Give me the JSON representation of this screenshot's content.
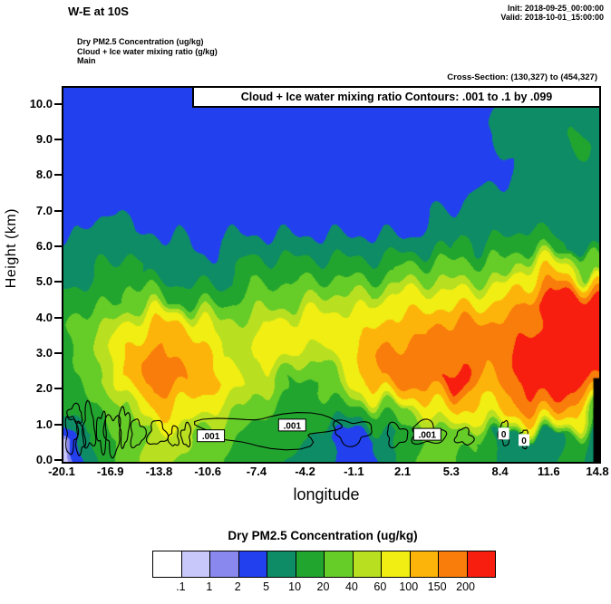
{
  "header": {
    "title": "W-E at 10S",
    "init_label": "Init: 2018-09-25_00:00:00",
    "valid_label": "Valid: 2018-10-01_15:00:00",
    "field_lines": [
      "Dry PM2.5 Concentration   (ug/kg)",
      "Cloud + Ice water mixing ratio   (g/kg)",
      "Main"
    ],
    "cross_section": "Cross-Section: (130,327) to (454,327)"
  },
  "plot": {
    "contour_note": "Cloud + Ice water mixing ratio Contours: .001 to .1 by .099",
    "ylabel": "Height (km)",
    "xlabel": "longitude",
    "y_ticks": [
      "0.0",
      "1.0",
      "2.0",
      "3.0",
      "4.0",
      "5.0",
      "6.0",
      "7.0",
      "8.0",
      "9.0",
      "10.0"
    ],
    "x_ticks": [
      "-20.1",
      "-16.9",
      "-13.8",
      "-10.6",
      "-7.4",
      "-4.2",
      "-1.1",
      "2.1",
      "5.3",
      "8.4",
      "11.6",
      "14.8"
    ]
  },
  "chart_data": {
    "type": "heatmap",
    "title": "Dry PM2.5 Concentration cross-section W-E at 10S",
    "xlabel": "longitude",
    "ylabel": "Height (km)",
    "x_range": [
      -20.1,
      14.8
    ],
    "y_range": [
      0,
      10.5
    ],
    "levels": [
      0.1,
      1,
      2,
      5,
      10,
      20,
      40,
      60,
      100,
      150,
      200
    ],
    "palette": [
      "#ffffff",
      "#c8c8fa",
      "#8888ee",
      "#2240ee",
      "#0e8c66",
      "#22a52e",
      "#66cc28",
      "#b8e020",
      "#f0ee12",
      "#fdb40a",
      "#f97d0a",
      "#f71e10"
    ],
    "grid": {
      "cols": 24,
      "rows": 15,
      "order": "rows top (h=10.5 km) to bottom (h=0 km), columns west (-20.1) to east (14.8)",
      "values": [
        [
          3,
          3,
          3,
          3,
          3,
          3,
          3,
          3,
          3,
          3,
          3,
          3,
          3,
          3,
          3,
          3,
          3,
          3,
          3,
          7,
          7,
          3,
          7,
          7
        ],
        [
          3,
          3,
          3,
          3,
          3,
          3,
          3,
          3,
          3,
          3,
          3,
          3,
          3,
          3,
          3,
          3,
          3,
          3,
          3,
          7,
          7,
          7,
          7,
          7
        ],
        [
          3,
          3,
          3,
          3,
          3,
          3,
          3,
          3,
          3,
          3,
          3,
          3,
          3,
          3,
          3,
          3,
          3,
          3,
          3,
          7,
          7,
          7,
          15,
          7
        ],
        [
          3,
          3,
          3,
          3,
          3,
          3,
          3,
          3,
          3,
          3,
          3,
          3,
          3,
          3,
          3,
          3,
          3,
          3,
          3,
          3,
          7,
          7,
          7,
          7
        ],
        [
          3,
          3,
          3,
          3,
          3,
          3,
          3,
          3,
          3,
          3,
          3,
          3,
          3,
          3,
          3,
          3,
          3,
          3,
          7,
          7,
          7,
          7,
          7,
          7
        ],
        [
          3,
          3,
          7,
          3,
          3,
          3,
          3,
          3,
          3,
          3,
          3,
          3,
          3,
          3,
          3,
          3,
          7,
          7,
          7,
          7,
          7,
          7,
          7,
          7
        ],
        [
          7,
          7,
          7,
          7,
          7,
          7,
          3,
          7,
          7,
          7,
          7,
          7,
          7,
          7,
          7,
          7,
          7,
          15,
          7,
          15,
          15,
          15,
          7,
          7
        ],
        [
          7,
          7,
          15,
          15,
          7,
          7,
          7,
          7,
          15,
          15,
          15,
          15,
          15,
          15,
          15,
          30,
          30,
          30,
          30,
          30,
          80,
          120,
          80,
          15
        ],
        [
          15,
          15,
          15,
          30,
          30,
          15,
          15,
          15,
          30,
          30,
          30,
          50,
          50,
          50,
          80,
          80,
          80,
          80,
          80,
          120,
          170,
          250,
          250,
          250
        ],
        [
          15,
          30,
          50,
          80,
          120,
          120,
          80,
          50,
          50,
          80,
          80,
          80,
          80,
          80,
          120,
          120,
          170,
          170,
          170,
          170,
          170,
          250,
          250,
          250
        ],
        [
          15,
          30,
          50,
          120,
          170,
          120,
          120,
          50,
          50,
          80,
          50,
          50,
          80,
          120,
          170,
          170,
          170,
          170,
          170,
          170,
          250,
          250,
          250,
          250
        ],
        [
          15,
          30,
          50,
          120,
          170,
          170,
          120,
          80,
          50,
          50,
          15,
          15,
          50,
          120,
          170,
          170,
          170,
          250,
          120,
          170,
          250,
          250,
          250,
          170
        ],
        [
          7,
          15,
          30,
          50,
          120,
          80,
          80,
          50,
          30,
          15,
          15,
          15,
          15,
          15,
          30,
          50,
          80,
          120,
          80,
          120,
          170,
          170,
          120,
          30
        ],
        [
          0.5,
          7,
          15,
          30,
          50,
          50,
          30,
          30,
          15,
          15,
          15,
          7,
          3,
          3,
          7,
          15,
          30,
          30,
          15,
          7,
          7,
          7,
          15,
          3
        ],
        [
          0.5,
          7,
          15,
          30,
          50,
          30,
          30,
          15,
          15,
          15,
          7,
          7,
          3,
          3,
          7,
          15,
          30,
          15,
          15,
          7,
          7,
          7,
          15,
          3
        ]
      ]
    },
    "terrain_column": {
      "lon_from": 14.42,
      "lon_to": 14.8,
      "h_from": 0,
      "h_to": 2.35,
      "color": "#000000"
    },
    "contours": {
      "field": "Cloud + Ice water mixing ratio",
      "levels_note": ".001 to .1 by .099",
      "blobs": [
        {
          "cx": -19.6,
          "cy": 0.8,
          "rx": 0.38,
          "ry": 0.5,
          "seed": 1
        },
        {
          "cx": -19.0,
          "cy": 0.65,
          "rx": 0.3,
          "ry": 0.4,
          "seed": 2
        },
        {
          "cx": -18.45,
          "cy": 0.95,
          "rx": 0.42,
          "ry": 0.55,
          "seed": 3
        },
        {
          "cx": -19.35,
          "cy": 1.35,
          "rx": 0.5,
          "ry": 0.22,
          "seed": 4
        },
        {
          "cx": -17.6,
          "cy": 0.85,
          "rx": 0.32,
          "ry": 0.5,
          "seed": 5
        },
        {
          "cx": -16.9,
          "cy": 0.8,
          "rx": 0.5,
          "ry": 0.55,
          "seed": 6
        },
        {
          "cx": -16.15,
          "cy": 1.0,
          "rx": 0.3,
          "ry": 0.55,
          "seed": 7
        },
        {
          "cx": -15.3,
          "cy": 0.8,
          "rx": 0.42,
          "ry": 0.4,
          "seed": 8
        },
        {
          "cx": -14.0,
          "cy": 0.8,
          "rx": 0.55,
          "ry": 0.35,
          "seed": 9
        },
        {
          "cx": -12.9,
          "cy": 0.7,
          "rx": 0.3,
          "ry": 0.28,
          "seed": 10
        },
        {
          "cx": -12.1,
          "cy": 0.75,
          "rx": 0.3,
          "ry": 0.3,
          "seed": 11
        },
        {
          "cx": -6.6,
          "cy": 0.9,
          "rx": 4.6,
          "ry": 0.42,
          "seed": 12
        },
        {
          "cx": -1.3,
          "cy": 0.85,
          "rx": 1.3,
          "ry": 0.3,
          "seed": 13
        },
        {
          "cx": 1.6,
          "cy": 0.75,
          "rx": 0.7,
          "ry": 0.28,
          "seed": 14
        },
        {
          "cx": 3.6,
          "cy": 0.8,
          "rx": 1.1,
          "ry": 0.3,
          "seed": 15
        },
        {
          "cx": 6.0,
          "cy": 0.7,
          "rx": 0.55,
          "ry": 0.22,
          "seed": 16
        },
        {
          "cx": 8.6,
          "cy": 0.8,
          "rx": 0.3,
          "ry": 0.35,
          "seed": 17
        },
        {
          "cx": 9.9,
          "cy": 0.65,
          "rx": 0.22,
          "ry": 0.28,
          "seed": 18
        }
      ],
      "labels": [
        {
          "text": ".001",
          "lon": -10.5,
          "h": 0.72,
          "boxed": true
        },
        {
          "text": ".001",
          "lon": -5.2,
          "h": 1.02,
          "boxed": true
        },
        {
          "text": ".001",
          "lon": 3.6,
          "h": 0.76,
          "boxed": true
        },
        {
          "text": "0",
          "lon": 8.58,
          "h": 0.78,
          "boxed": false
        },
        {
          "text": "0",
          "lon": 9.9,
          "h": 0.6,
          "boxed": false
        }
      ]
    }
  },
  "colorbar": {
    "title": "Dry PM2.5 Concentration  (ug/kg)",
    "labels": [
      ".1",
      "1",
      "2",
      "5",
      "10",
      "20",
      "40",
      "60",
      "100",
      "150",
      "200"
    ]
  }
}
